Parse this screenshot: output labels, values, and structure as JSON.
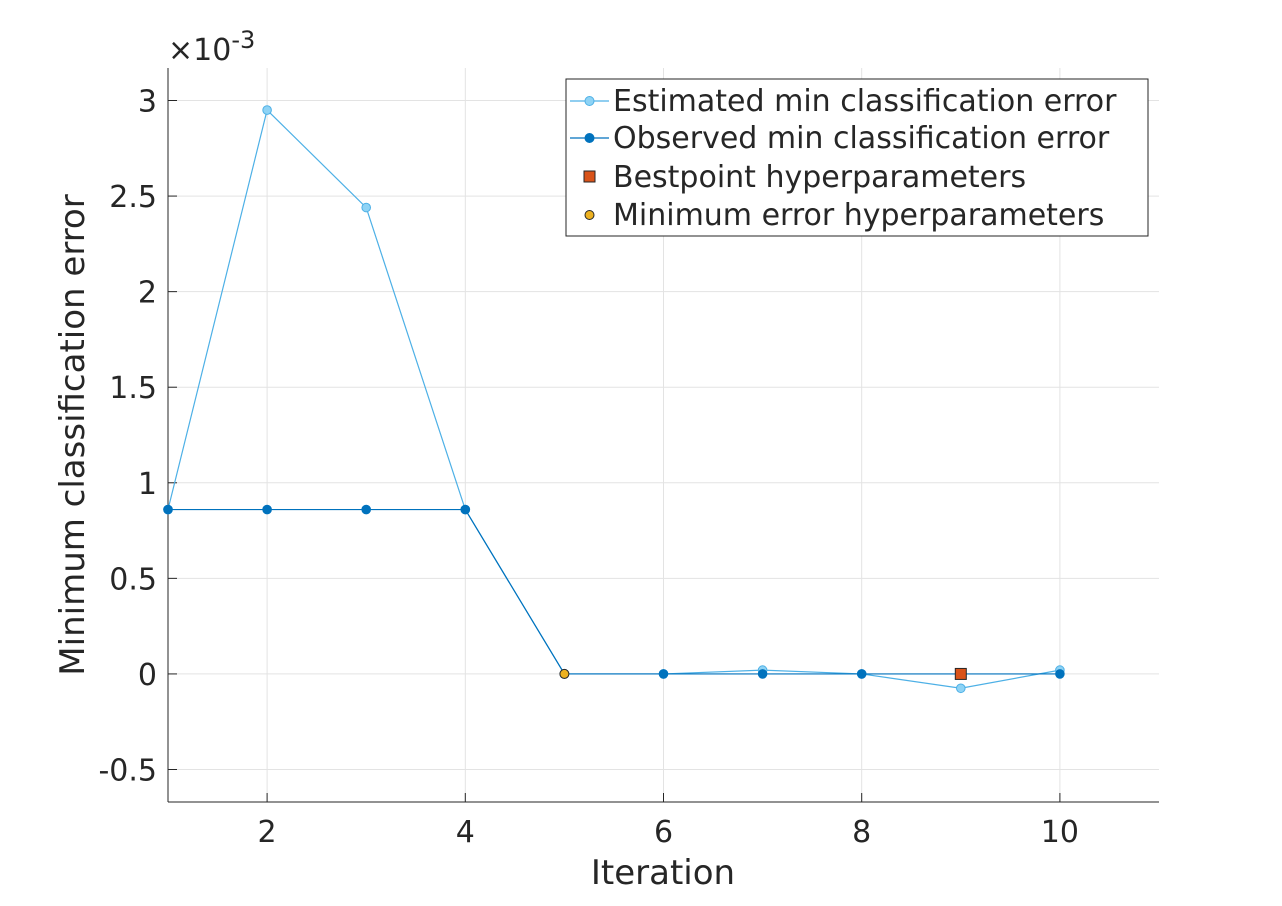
{
  "chart_data": {
    "type": "line",
    "xlabel": "Iteration",
    "ylabel": "Minimum classification error",
    "exponent_label": "×10",
    "exponent_power": "-3",
    "xlim": [
      1,
      11
    ],
    "ylim": [
      -0.67,
      3.17
    ],
    "y_scale_factor": 0.001,
    "x_ticks": [
      2,
      4,
      6,
      8,
      10
    ],
    "x_tick_labels": [
      "2",
      "4",
      "6",
      "8",
      "10"
    ],
    "y_ticks": [
      -0.5,
      0,
      0.5,
      1,
      1.5,
      2,
      2.5,
      3
    ],
    "y_tick_labels": [
      "-0.5",
      "0",
      "0.5",
      "1",
      "1.5",
      "2",
      "2.5",
      "3"
    ],
    "grid": true,
    "legend_position": "top-right",
    "series": [
      {
        "name": "Estimated min classification error",
        "color": "#4DB0E6",
        "marker_fill": "#8ED3F5",
        "marker": "circle",
        "x": [
          1,
          2,
          3,
          4,
          5,
          6,
          7,
          8,
          9,
          10
        ],
        "y": [
          0.86,
          2.95,
          2.44,
          0.86,
          0.0,
          0.0,
          0.02,
          0.0,
          -0.075,
          0.02
        ]
      },
      {
        "name": "Observed min classification error",
        "color": "#0072BD",
        "marker_fill": "#0072BD",
        "marker": "circle",
        "x": [
          1,
          2,
          3,
          4,
          5,
          6,
          7,
          8,
          9,
          10
        ],
        "y": [
          0.86,
          0.86,
          0.86,
          0.86,
          0.0,
          0.0,
          0.0,
          0.0,
          0.0,
          0.0
        ]
      }
    ],
    "markers": [
      {
        "name": "Bestpoint hyperparameters",
        "shape": "square",
        "color": "#D95319",
        "x": 9,
        "y": 0.0
      },
      {
        "name": "Minimum error hyperparameters",
        "shape": "circle",
        "color": "#EDB120",
        "x": 5,
        "y": 0.0
      }
    ]
  }
}
